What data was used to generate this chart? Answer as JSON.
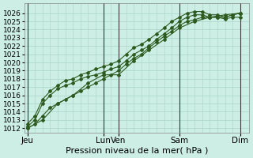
{
  "xlabel": "Pression niveau de la mer( hPa )",
  "background_color": "#cceee4",
  "grid_color": "#aad4c8",
  "line_color": "#2d5a1e",
  "vline_color": "#3a3a3a",
  "ylim": [
    1011.5,
    1027.2
  ],
  "ytick_min": 1012,
  "ytick_max": 1026,
  "ytick_step": 1,
  "xtick_labels": [
    "Jeu",
    "Lun",
    "Ven",
    "Sam",
    "Dim"
  ],
  "xtick_positions": [
    0,
    60,
    72,
    120,
    168
  ],
  "vline_positions": [
    0,
    60,
    72,
    120,
    168
  ],
  "xlim": [
    -2,
    175
  ],
  "xlabel_fontsize": 8,
  "ytick_fontsize": 6.5,
  "xtick_fontsize": 7.5,
  "marker": "D",
  "marker_size": 2.0,
  "linewidth": 0.8,
  "series_x": [
    [
      0,
      6,
      12,
      18,
      24,
      30,
      36,
      42,
      48,
      54,
      60,
      66,
      72,
      78,
      84,
      90,
      96,
      102,
      108,
      114,
      120,
      126,
      132,
      138,
      144,
      150,
      156,
      162,
      168
    ],
    [
      0,
      6,
      12,
      18,
      24,
      30,
      36,
      42,
      48,
      54,
      60,
      66,
      72,
      78,
      84,
      90,
      96,
      102,
      108,
      114,
      120,
      126,
      132,
      138,
      144,
      150,
      156,
      162,
      168
    ],
    [
      0,
      12,
      24,
      36,
      48,
      60,
      72,
      84,
      96,
      108,
      120,
      132,
      144,
      156,
      168
    ],
    [
      0,
      6,
      12,
      18,
      24,
      30,
      36,
      42,
      48,
      54,
      60,
      66,
      72,
      78,
      84,
      90,
      96,
      102,
      108,
      114,
      120,
      126,
      132,
      138,
      144,
      150,
      156,
      162,
      168
    ]
  ],
  "series_y": [
    [
      1012.2,
      1013.0,
      1015.0,
      1016.0,
      1016.8,
      1017.2,
      1017.5,
      1018.0,
      1018.3,
      1018.5,
      1018.8,
      1019.2,
      1019.5,
      1020.2,
      1021.0,
      1021.5,
      1022.0,
      1022.8,
      1023.5,
      1024.2,
      1025.0,
      1025.5,
      1025.8,
      1025.8,
      1025.5,
      1025.5,
      1025.3,
      1025.5,
      1025.5
    ],
    [
      1012.5,
      1013.5,
      1015.5,
      1016.5,
      1017.2,
      1017.8,
      1018.0,
      1018.5,
      1018.8,
      1019.2,
      1019.5,
      1019.8,
      1020.2,
      1021.0,
      1021.8,
      1022.2,
      1022.8,
      1023.5,
      1024.2,
      1025.0,
      1025.5,
      1026.0,
      1026.2,
      1026.2,
      1025.8,
      1025.8,
      1025.5,
      1025.8,
      1026.0
    ],
    [
      1012.0,
      1013.0,
      1015.0,
      1016.0,
      1017.5,
      1018.5,
      1018.5,
      1020.2,
      1021.5,
      1022.8,
      1024.2,
      1025.0,
      1025.5,
      1025.8,
      1026.0
    ],
    [
      1012.0,
      1012.5,
      1013.5,
      1014.5,
      1015.0,
      1015.5,
      1016.0,
      1016.5,
      1017.0,
      1017.5,
      1018.0,
      1018.5,
      1019.0,
      1019.8,
      1020.5,
      1021.0,
      1021.8,
      1022.5,
      1023.2,
      1023.8,
      1024.5,
      1025.0,
      1025.2,
      1025.5,
      1025.5,
      1025.5,
      1025.5,
      1025.8,
      1026.0
    ]
  ]
}
